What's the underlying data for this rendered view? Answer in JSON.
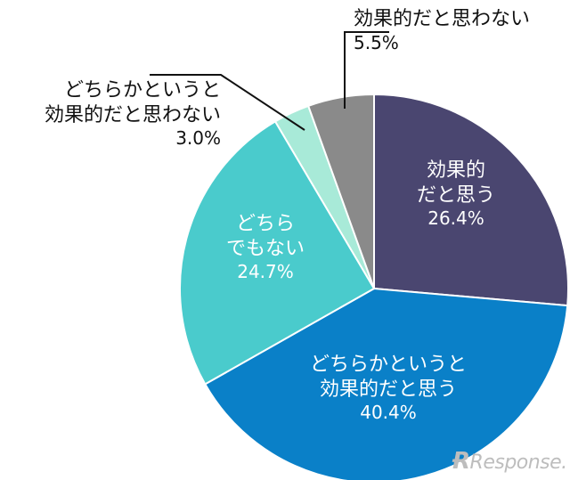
{
  "chart_data": {
    "type": "pie",
    "slices": [
      {
        "label_lines": [
          "効果的",
          "だと思う"
        ],
        "value": 26.4,
        "display": "26.4%",
        "color": "#4a4670"
      },
      {
        "label_lines": [
          "どちらかというと",
          "効果的だと思う"
        ],
        "value": 40.4,
        "display": "40.4%",
        "color": "#0a80c8"
      },
      {
        "label_lines": [
          "どちら",
          "でもない"
        ],
        "value": 24.7,
        "display": "24.7%",
        "color": "#4acbcc"
      },
      {
        "label_lines": [
          "どちらかというと",
          "効果的だと思わない"
        ],
        "value": 3.0,
        "display": "3.0%",
        "color": "#a8ead8"
      },
      {
        "label_lines": [
          "効果的だと思わない"
        ],
        "value": 5.5,
        "display": "5.5%",
        "color": "#8a8a8a"
      }
    ]
  },
  "watermark": {
    "text": "Response.",
    "icon": "logo-r-mark"
  }
}
